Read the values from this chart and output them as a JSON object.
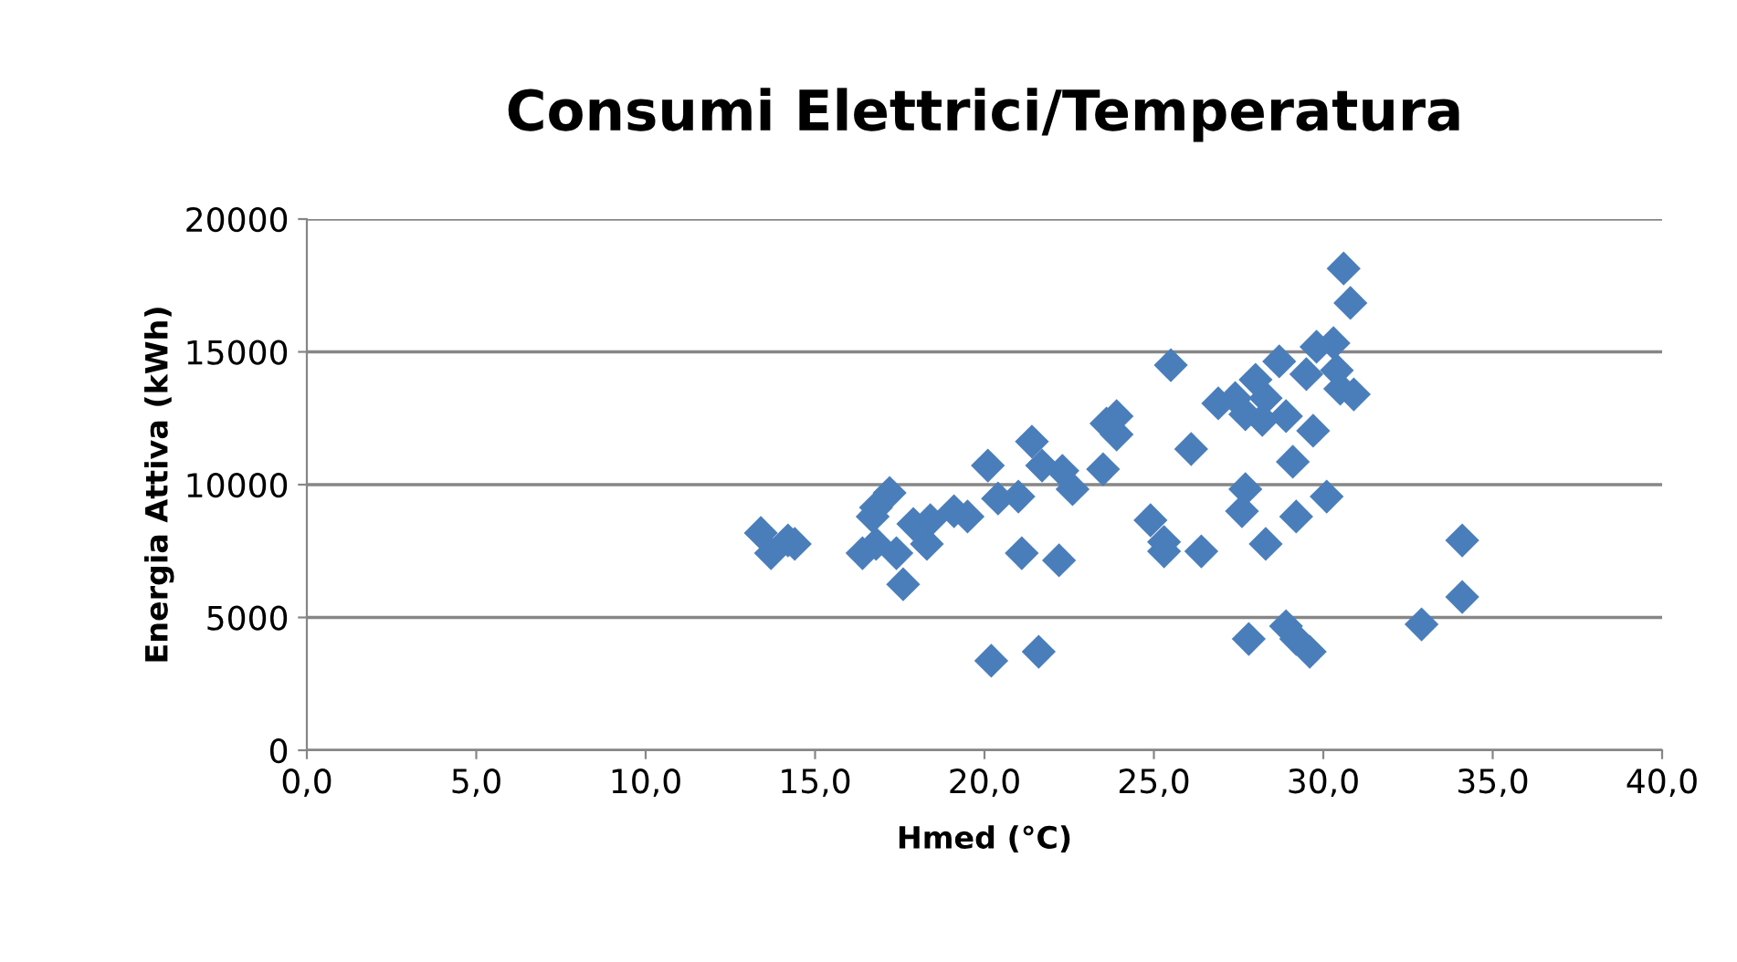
{
  "chart_data": {
    "type": "scatter",
    "title": "Consumi Elettrici/Temperatura",
    "xlabel": "Hmed (°C)",
    "ylabel": "Energia Attiva (kWh)",
    "xlim": [
      0,
      40
    ],
    "xticks": [
      {
        "value": 0,
        "label": "0,0"
      },
      {
        "value": 5,
        "label": "5,0"
      },
      {
        "value": 10,
        "label": "10,0"
      },
      {
        "value": 15,
        "label": "15,0"
      },
      {
        "value": 20,
        "label": "20,0"
      },
      {
        "value": 25,
        "label": "25,0"
      },
      {
        "value": 30,
        "label": "30,0"
      },
      {
        "value": 35,
        "label": "35,0"
      },
      {
        "value": 40,
        "label": "40,0"
      }
    ],
    "ylim": [
      0,
      20000
    ],
    "yticks": [
      0,
      5000,
      10000,
      15000,
      20000
    ],
    "grid": "y",
    "marker": "diamond",
    "legend": false,
    "series": [
      {
        "color": "#4a7ebb",
        "x": [
          13.4,
          14.2,
          13.7,
          14.4,
          17.2,
          16.8,
          16.7,
          16.4,
          16.8,
          17.4,
          17.6,
          17.9,
          18.4,
          18.3,
          19.1,
          19.5,
          20.4,
          21.0,
          21.1,
          22.2,
          20.2,
          21.6,
          24.9,
          25.3,
          25.3,
          26.4,
          30.6,
          30.8,
          25.5,
          29.8,
          30.3,
          28.7,
          28.0,
          29.5,
          30.4,
          30.5,
          30.9,
          26.9,
          27.4,
          27.7,
          28.3,
          28.2,
          28.9,
          29.7,
          26.1,
          23.9,
          23.6,
          23.9,
          21.4,
          20.1,
          21.7,
          22.3,
          22.6,
          23.5,
          29.1,
          27.7,
          27.6,
          30.1,
          29.2,
          28.3,
          27.8,
          28.9,
          29.2,
          29.6,
          32.9,
          34.1,
          34.1
        ],
        "values": [
          8180,
          7900,
          7420,
          7770,
          9690,
          9140,
          8800,
          7420,
          7770,
          7420,
          6250,
          8520,
          8660,
          7770,
          9000,
          8800,
          9480,
          9550,
          7420,
          7150,
          3370,
          3710,
          8660,
          7840,
          7490,
          7490,
          18140,
          16840,
          14500,
          15190,
          15330,
          14640,
          13950,
          14160,
          14300,
          13610,
          13400,
          13060,
          13260,
          12650,
          13260,
          12440,
          12580,
          12030,
          11340,
          12580,
          12300,
          11890,
          11620,
          10720,
          10720,
          10520,
          9830,
          10580,
          10860,
          9830,
          9000,
          9550,
          8800,
          7770,
          4190,
          4670,
          4190,
          3710,
          4740,
          7900,
          5770
        ]
      }
    ]
  }
}
